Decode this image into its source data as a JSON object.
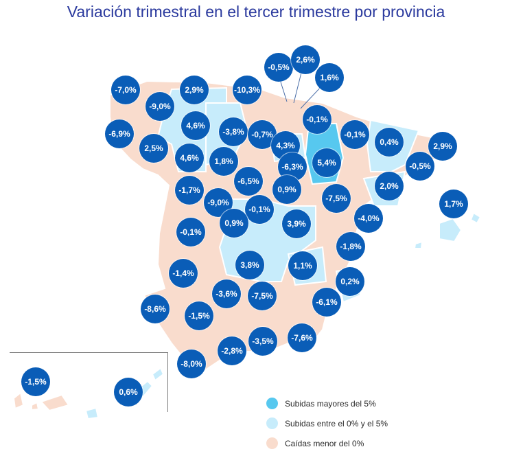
{
  "title": "Variación trimestral en el tercer trimestre por provincia",
  "colors": {
    "falls": "#f9dccd",
    "rise_0_5": "#c7ecfb",
    "rise_over_5": "#57c8ef",
    "badge": "#0a5db7",
    "title": "#2b3a9e"
  },
  "legend": [
    {
      "label": "Subidas mayores del 5%",
      "color": "#57c8ef"
    },
    {
      "label": "Subidas entre el 0% y el 5%",
      "color": "#c7ecfb"
    },
    {
      "label": "Caídas menor del 0%",
      "color": "#f9dccd"
    }
  ],
  "badges": [
    {
      "id": "a-coruna",
      "label": "-7,0%"
    },
    {
      "id": "lugo",
      "label": "-9,0%"
    },
    {
      "id": "asturias",
      "label": "2,9%"
    },
    {
      "id": "cantabria",
      "label": "-10,3%"
    },
    {
      "id": "vizcaya",
      "label": "-0,5%"
    },
    {
      "id": "guipuzcoa",
      "label": "2,6%"
    },
    {
      "id": "navarra",
      "label": "1,6%"
    },
    {
      "id": "pontevedra",
      "label": "-6,9%"
    },
    {
      "id": "leon",
      "label": "4,6%"
    },
    {
      "id": "palencia",
      "label": "-3,8%"
    },
    {
      "id": "burgos",
      "label": "-0,7%"
    },
    {
      "id": "alava",
      "label": "-0,1%"
    },
    {
      "id": "huesca",
      "label": "-0,1%"
    },
    {
      "id": "girona",
      "label": "0,4%"
    },
    {
      "id": "barcelona",
      "label": "2,9%"
    },
    {
      "id": "ourense",
      "label": "2,5%"
    },
    {
      "id": "zamora",
      "label": "4,6%"
    },
    {
      "id": "valladolid",
      "label": "1,8%"
    },
    {
      "id": "la-rioja",
      "label": "4,3%"
    },
    {
      "id": "soria",
      "label": "-6,3%"
    },
    {
      "id": "zaragoza",
      "label": "5,4%"
    },
    {
      "id": "lleida",
      "label": "-0,5%"
    },
    {
      "id": "segovia",
      "label": "-6,5%"
    },
    {
      "id": "salamanca",
      "label": "-1,7%"
    },
    {
      "id": "guadalajara",
      "label": "0,9%"
    },
    {
      "id": "tarragona",
      "label": "2,0%"
    },
    {
      "id": "avila",
      "label": "-9,0%"
    },
    {
      "id": "madrid",
      "label": "-0,1%"
    },
    {
      "id": "teruel",
      "label": "-7,5%"
    },
    {
      "id": "baleares",
      "label": "1,7%"
    },
    {
      "id": "caceres",
      "label": "-0,1%"
    },
    {
      "id": "toledo",
      "label": "0,9%"
    },
    {
      "id": "cuenca",
      "label": "3,9%"
    },
    {
      "id": "castellon",
      "label": "-4,0%"
    },
    {
      "id": "valencia",
      "label": "-1,8%"
    },
    {
      "id": "badajoz",
      "label": "-1,4%"
    },
    {
      "id": "ciudad-real",
      "label": "3,8%"
    },
    {
      "id": "albacete",
      "label": "1,1%"
    },
    {
      "id": "alicante",
      "label": "0,2%"
    },
    {
      "id": "cordoba",
      "label": "-3,6%"
    },
    {
      "id": "jaen",
      "label": "-7,5%"
    },
    {
      "id": "murcia",
      "label": "-6,1%"
    },
    {
      "id": "huelva",
      "label": "-8,6%"
    },
    {
      "id": "sevilla",
      "label": "-1,5%"
    },
    {
      "id": "granada",
      "label": "-3,5%"
    },
    {
      "id": "almeria",
      "label": "-7,6%"
    },
    {
      "id": "malaga",
      "label": "-2,8%"
    },
    {
      "id": "cadiz",
      "label": "-8,0%"
    },
    {
      "id": "santa-cruz-tenerife",
      "label": "-1,5%"
    },
    {
      "id": "las-palmas",
      "label": "0,6%"
    }
  ]
}
